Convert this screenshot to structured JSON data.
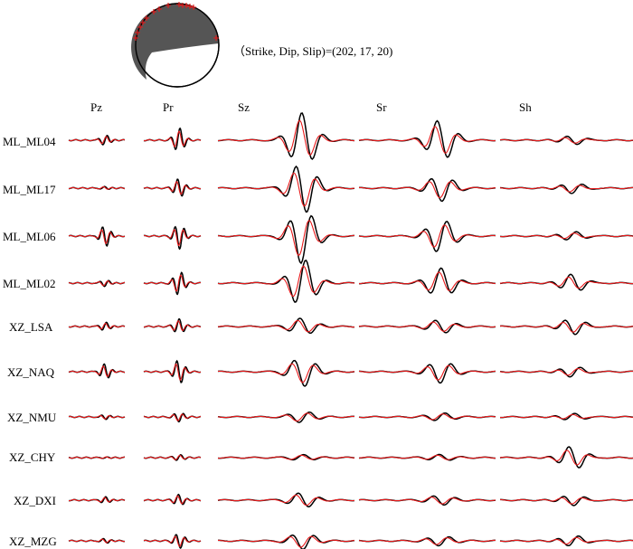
{
  "mechanism": {
    "label": "（Strike, Dip, Slip)=(202, 17, 20)",
    "colors": {
      "compression": "#555555",
      "dilatation": "#ffffff",
      "outline": "#000000",
      "polarity": "#e8191a"
    }
  },
  "components": [
    "Pz",
    "Pr",
    "Sz",
    "Sr",
    "Sh"
  ],
  "stations": [
    "ML_ML04",
    "ML_ML17",
    "ML_ML06",
    "ML_ML02",
    "XZ_LSA",
    "XZ_NAQ",
    "XZ_NMU",
    "XZ_CHY",
    "XZ_DXI",
    "XZ_MZG"
  ],
  "legend_colors": {
    "observed": "#000000",
    "synthetic": "#e8191a"
  }
}
